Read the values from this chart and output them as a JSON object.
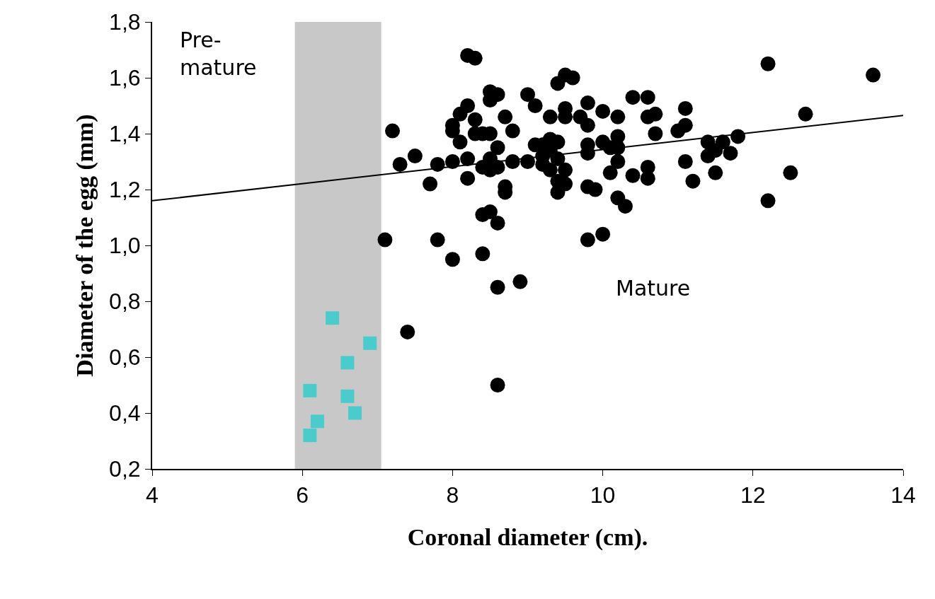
{
  "chart_data": {
    "type": "scatter",
    "xlabel": "Coronal diameter (cm).",
    "ylabel": "Diameter of the egg (mm)",
    "xlim": [
      4,
      14
    ],
    "xticks": [
      4,
      6,
      8,
      10,
      12,
      14
    ],
    "ylim": [
      0.2,
      1.8
    ],
    "yticks": [
      {
        "value": 0.2,
        "label": "0,2"
      },
      {
        "value": 0.4,
        "label": "0,4"
      },
      {
        "value": 0.6,
        "label": "0,6"
      },
      {
        "value": 0.8,
        "label": "0,8"
      },
      {
        "value": 1.0,
        "label": "1,0"
      },
      {
        "value": 1.2,
        "label": "1,2"
      },
      {
        "value": 1.4,
        "label": "1,4"
      },
      {
        "value": 1.6,
        "label": "1,6"
      },
      {
        "value": 1.8,
        "label": "1,8"
      }
    ],
    "grid": false,
    "bands": [
      {
        "axis": "x",
        "from": 5.9,
        "to": 7.05,
        "color": "#c8c8c8"
      }
    ],
    "annotations": [
      "Pre-\nmature",
      "Mature"
    ],
    "series": [
      {
        "marker": "circle",
        "color": "#000000",
        "x": [
          7.1,
          7.2,
          7.3,
          7.5,
          7.4,
          7.7,
          7.8,
          7.8,
          8.0,
          8.0,
          8.0,
          8.0,
          8.1,
          8.1,
          8.2,
          8.3,
          8.2,
          8.2,
          8.2,
          8.3,
          8.3,
          8.4,
          8.4,
          8.4,
          8.4,
          8.5,
          8.5,
          8.5,
          8.5,
          8.5,
          8.5,
          8.6,
          8.6,
          8.6,
          8.6,
          8.6,
          8.6,
          8.7,
          8.7,
          8.7,
          8.8,
          8.8,
          8.9,
          9.0,
          9.0,
          9.1,
          9.1,
          9.2,
          9.2,
          9.2,
          9.3,
          9.3,
          9.3,
          9.3,
          9.4,
          9.4,
          9.4,
          9.4,
          9.4,
          9.5,
          9.5,
          9.5,
          9.5,
          9.5,
          9.6,
          9.7,
          9.8,
          9.8,
          9.8,
          9.8,
          9.8,
          9.8,
          9.9,
          10.0,
          10.0,
          10.0,
          10.1,
          10.1,
          10.2,
          10.2,
          10.2,
          10.2,
          10.2,
          10.3,
          10.4,
          10.4,
          10.6,
          10.6,
          10.6,
          10.6,
          10.7,
          10.7,
          11.0,
          11.1,
          11.1,
          11.1,
          11.2,
          11.4,
          11.4,
          11.5,
          11.5,
          11.6,
          11.7,
          11.8,
          12.2,
          12.2,
          12.5,
          12.7,
          13.6
        ],
        "values": [
          1.02,
          1.41,
          1.29,
          1.32,
          0.69,
          1.22,
          1.29,
          1.02,
          0.95,
          1.43,
          1.41,
          1.3,
          1.47,
          1.37,
          1.68,
          1.67,
          1.5,
          1.31,
          1.24,
          1.45,
          1.4,
          1.4,
          1.28,
          1.11,
          0.97,
          1.55,
          1.52,
          1.4,
          1.31,
          1.27,
          1.12,
          1.54,
          1.35,
          1.28,
          1.08,
          0.85,
          0.5,
          1.46,
          1.21,
          1.19,
          1.41,
          1.3,
          0.87,
          1.54,
          1.3,
          1.5,
          1.36,
          1.36,
          1.32,
          1.29,
          1.46,
          1.38,
          1.34,
          1.27,
          1.58,
          1.37,
          1.31,
          1.23,
          1.19,
          1.61,
          1.49,
          1.46,
          1.27,
          1.22,
          1.6,
          1.46,
          1.51,
          1.43,
          1.36,
          1.33,
          1.21,
          1.02,
          1.2,
          1.48,
          1.37,
          1.04,
          1.35,
          1.26,
          1.46,
          1.39,
          1.35,
          1.3,
          1.17,
          1.14,
          1.53,
          1.25,
          1.53,
          1.46,
          1.28,
          1.24,
          1.47,
          1.4,
          1.41,
          1.49,
          1.43,
          1.3,
          1.23,
          1.37,
          1.32,
          1.34,
          1.26,
          1.37,
          1.33,
          1.39,
          1.65,
          1.16,
          1.26,
          1.47,
          1.61
        ]
      },
      {
        "marker": "square",
        "color": "#4bcbcc",
        "x": [
          6.1,
          6.1,
          6.2,
          6.4,
          6.6,
          6.6,
          6.7,
          6.9
        ],
        "values": [
          0.48,
          0.32,
          0.37,
          0.74,
          0.58,
          0.46,
          0.4,
          0.65
        ]
      },
      {
        "type": "line",
        "marker": "none",
        "line_style": "solid",
        "color": "#000000",
        "x": [
          4,
          14
        ],
        "values": [
          1.16,
          1.465
        ]
      }
    ]
  }
}
